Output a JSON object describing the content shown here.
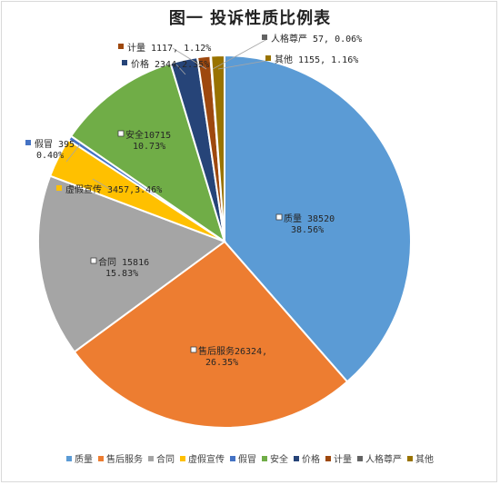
{
  "chart_data": {
    "type": "pie",
    "title": "图一   投诉性质比例表",
    "slices": [
      {
        "name": "质量",
        "value": 38520,
        "percent": "38.56%",
        "color": "#5b9bd5",
        "label_line1": "质量 38520",
        "label_line2": "38.56%"
      },
      {
        "name": "售后服务",
        "value": 26324,
        "percent": "26.35%",
        "color": "#ed7d31",
        "label_line1": "售后服务26324,",
        "label_line2": "26.35%"
      },
      {
        "name": "合同",
        "value": 15816,
        "percent": "15.83%",
        "color": "#a5a5a5",
        "label_line1": "合同 15816",
        "label_line2": "15.83%"
      },
      {
        "name": "虚假宣传",
        "value": 3457,
        "percent": "3.46%",
        "color": "#ffc000",
        "label_line1": "虚假宣传 3457,3.46%",
        "label_line2": ""
      },
      {
        "name": "假冒",
        "value": 395,
        "percent": "0.40%",
        "color": "#4472c4",
        "label_line1": "假冒 395",
        "label_line2": "0.40%"
      },
      {
        "name": "安全",
        "value": 10715,
        "percent": "10.73%",
        "color": "#70ad47",
        "label_line1": "安全10715",
        "label_line2": "10.73%"
      },
      {
        "name": "价格",
        "value": 2344,
        "percent": "2.35%",
        "color": "#264478",
        "label_line1": "价格 2344,2.35%",
        "label_line2": ""
      },
      {
        "name": "计量",
        "value": 1117,
        "percent": "1.12%",
        "color": "#9e480e",
        "label_line1": "计量 1117, 1.12%",
        "label_line2": ""
      },
      {
        "name": "人格尊严",
        "value": 57,
        "percent": "0.06%",
        "color": "#636363",
        "label_line1": "人格尊严 57, 0.06%",
        "label_line2": ""
      },
      {
        "name": "其他",
        "value": 1155,
        "percent": "1.16%",
        "color": "#997300",
        "label_line1": "其他 1155, 1.16%",
        "label_line2": ""
      }
    ],
    "legend_position": "bottom"
  }
}
